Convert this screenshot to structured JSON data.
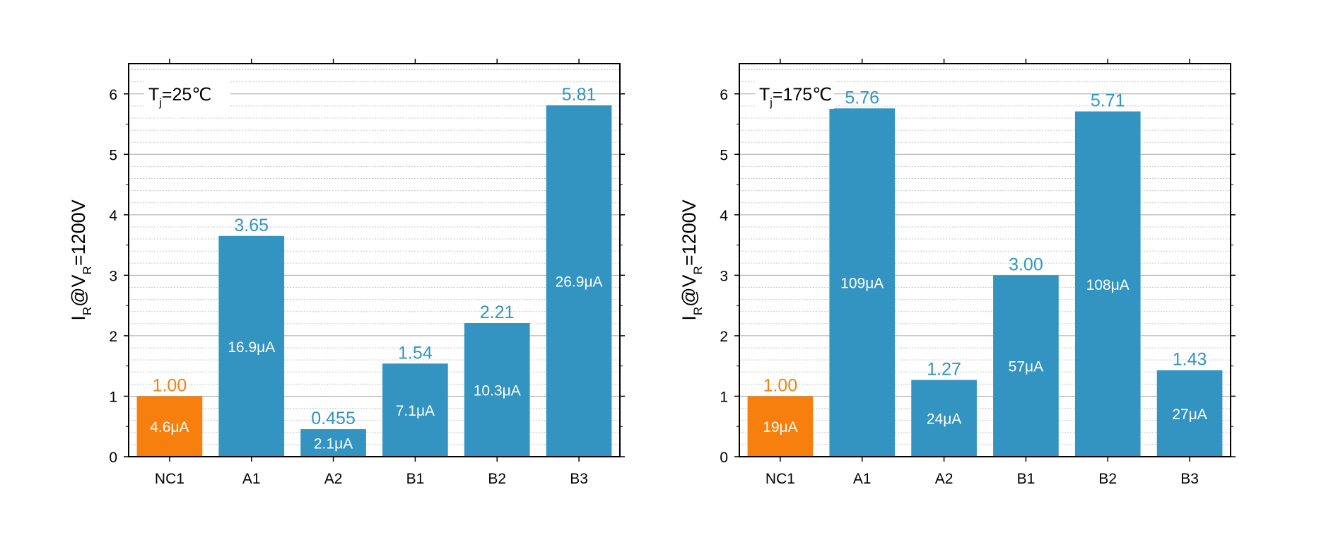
{
  "chart_data": [
    {
      "type": "bar",
      "condition_label": {
        "main": "T",
        "sub": "j",
        "rest": "=25℃"
      },
      "ylabel": {
        "parts": [
          "I",
          "R",
          "@V",
          "R",
          "=1200V"
        ]
      },
      "ylim": [
        0,
        6.5
      ],
      "yticks": [
        0,
        1,
        2,
        3,
        4,
        5,
        6
      ],
      "grid": {
        "major": true,
        "minor": true
      },
      "categories": [
        "NC1",
        "A1",
        "A2",
        "B1",
        "B2",
        "B3"
      ],
      "values": [
        1.0,
        3.65,
        0.455,
        1.54,
        2.21,
        5.81
      ],
      "value_labels": [
        "1.00",
        "3.65",
        "0.455",
        "1.54",
        "2.21",
        "5.81"
      ],
      "inner_labels": [
        "4.6μA",
        "16.9μA",
        "2.1μA",
        "7.1μA",
        "10.3μA",
        "26.9μA"
      ],
      "bar_colors": [
        "#f77f0e",
        "#3394c2",
        "#3394c2",
        "#3394c2",
        "#3394c2",
        "#3394c2"
      ],
      "value_label_colors": [
        "#f77f0e",
        "#3394c2",
        "#3394c2",
        "#3394c2",
        "#3394c2",
        "#3394c2"
      ]
    },
    {
      "type": "bar",
      "condition_label": {
        "main": "T",
        "sub": "j",
        "rest": "=175℃"
      },
      "ylabel": {
        "parts": [
          "I",
          "R",
          "@V",
          "R",
          "=1200V"
        ]
      },
      "ylim": [
        0,
        6.5
      ],
      "yticks": [
        0,
        1,
        2,
        3,
        4,
        5,
        6
      ],
      "grid": {
        "major": true,
        "minor": true
      },
      "categories": [
        "NC1",
        "A1",
        "A2",
        "B1",
        "B2",
        "B3"
      ],
      "values": [
        1.0,
        5.76,
        1.27,
        3.0,
        5.71,
        1.43
      ],
      "value_labels": [
        "1.00",
        "5.76",
        "1.27",
        "3.00",
        "5.71",
        "1.43"
      ],
      "inner_labels": [
        "19μA",
        "109μA",
        "24μA",
        "57μA",
        "108μA",
        "27μA"
      ],
      "bar_colors": [
        "#f77f0e",
        "#3394c2",
        "#3394c2",
        "#3394c2",
        "#3394c2",
        "#3394c2"
      ],
      "value_label_colors": [
        "#f77f0e",
        "#3394c2",
        "#3394c2",
        "#3394c2",
        "#3394c2",
        "#3394c2"
      ]
    }
  ]
}
